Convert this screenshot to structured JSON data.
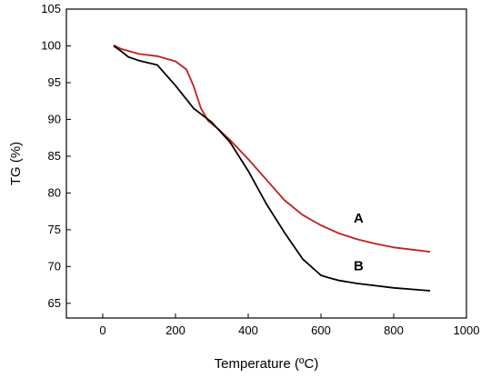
{
  "chart_data": {
    "type": "line",
    "xlabel": "Temperature (ºC)",
    "ylabel": "TG (%)",
    "xlim": [
      -100,
      1000
    ],
    "ylim": [
      63,
      105
    ],
    "xticks": [
      0,
      200,
      400,
      600,
      800,
      1000
    ],
    "yticks": [
      65,
      70,
      75,
      80,
      85,
      90,
      95,
      100,
      105
    ],
    "grid": false,
    "series": [
      {
        "name": "A",
        "color": "#c41e1e",
        "x": [
          30,
          50,
          100,
          150,
          200,
          230,
          250,
          270,
          290,
          320,
          350,
          400,
          450,
          500,
          550,
          600,
          650,
          700,
          750,
          800,
          850,
          900
        ],
        "y": [
          100.1,
          99.6,
          98.9,
          98.6,
          97.9,
          96.8,
          94.5,
          91.5,
          89.8,
          88.6,
          87.2,
          84.6,
          81.8,
          79.0,
          77.0,
          75.6,
          74.5,
          73.7,
          73.1,
          72.6,
          72.3,
          72.0
        ]
      },
      {
        "name": "B",
        "color": "#000000",
        "x": [
          30,
          50,
          70,
          100,
          150,
          200,
          250,
          300,
          350,
          400,
          450,
          500,
          550,
          600,
          620,
          650,
          700,
          750,
          800,
          850,
          900
        ],
        "y": [
          100.0,
          99.3,
          98.5,
          98.0,
          97.4,
          94.6,
          91.5,
          89.6,
          86.9,
          83.0,
          78.5,
          74.6,
          71.0,
          68.8,
          68.5,
          68.1,
          67.7,
          67.4,
          67.1,
          66.9,
          66.7
        ]
      }
    ],
    "annotations": [
      {
        "text": "A",
        "x": 690,
        "y": 76.0
      },
      {
        "text": "B",
        "x": 690,
        "y": 69.5
      }
    ]
  }
}
